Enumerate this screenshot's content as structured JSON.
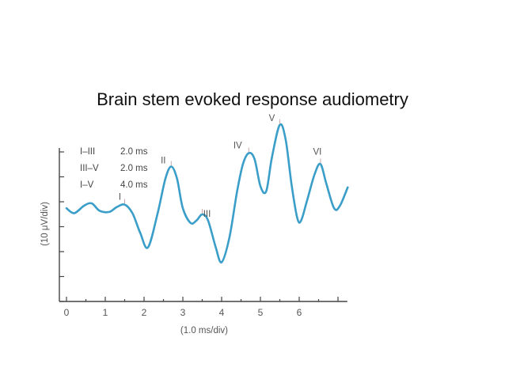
{
  "slide": {
    "title": "Brain stem evoked response audiometry"
  },
  "chart_data": {
    "type": "line",
    "xlabel": "(1.0 ms/div)",
    "ylabel": "(10 μV/div)",
    "xlim": [
      0,
      7.2
    ],
    "ylim": [
      0,
      10
    ],
    "x_ticks": [
      "0",
      "1",
      "2",
      "3",
      "4",
      "5",
      "6"
    ],
    "legend": [
      {
        "label": "I–III",
        "value": "2.0 ms"
      },
      {
        "label": "III–V",
        "value": "2.0 ms"
      },
      {
        "label": "I–V",
        "value": "4.0 ms"
      }
    ],
    "series": [
      {
        "color": "#3a9ec9",
        "points": [
          [
            0,
            3.8
          ],
          [
            0.2,
            3.6
          ],
          [
            0.45,
            3.9
          ],
          [
            0.65,
            4.0
          ],
          [
            0.85,
            3.7
          ],
          [
            1.1,
            3.65
          ],
          [
            1.3,
            3.85
          ],
          [
            1.5,
            3.95
          ],
          [
            1.7,
            3.6
          ],
          [
            1.9,
            2.8
          ],
          [
            2.1,
            2.2
          ],
          [
            2.35,
            3.6
          ],
          [
            2.55,
            5.0
          ],
          [
            2.7,
            5.5
          ],
          [
            2.85,
            5.0
          ],
          [
            3.0,
            3.8
          ],
          [
            3.2,
            3.2
          ],
          [
            3.35,
            3.3
          ],
          [
            3.5,
            3.55
          ],
          [
            3.65,
            3.3
          ],
          [
            3.85,
            2.2
          ],
          [
            4.0,
            1.6
          ],
          [
            4.2,
            2.6
          ],
          [
            4.4,
            4.5
          ],
          [
            4.55,
            5.6
          ],
          [
            4.7,
            6.05
          ],
          [
            4.85,
            5.8
          ],
          [
            5.0,
            4.7
          ],
          [
            5.15,
            4.5
          ],
          [
            5.3,
            5.9
          ],
          [
            5.5,
            7.2
          ],
          [
            5.65,
            6.6
          ],
          [
            5.8,
            4.8
          ],
          [
            5.95,
            3.4
          ],
          [
            6.05,
            3.3
          ],
          [
            6.2,
            4.1
          ],
          [
            6.4,
            5.2
          ],
          [
            6.55,
            5.6
          ],
          [
            6.7,
            4.8
          ],
          [
            6.9,
            3.8
          ],
          [
            7.05,
            3.9
          ],
          [
            7.25,
            4.65
          ]
        ]
      }
    ],
    "annotations": [
      {
        "text": "I",
        "x": 1.5,
        "y": 3.95
      },
      {
        "text": "II",
        "x": 2.7,
        "y": 5.5
      },
      {
        "text": "III",
        "x": 3.5,
        "y": 3.55
      },
      {
        "text": "IV",
        "x": 4.7,
        "y": 6.05
      },
      {
        "text": "V",
        "x": 5.5,
        "y": 7.2
      },
      {
        "text": "VI",
        "x": 6.55,
        "y": 5.6
      }
    ]
  }
}
